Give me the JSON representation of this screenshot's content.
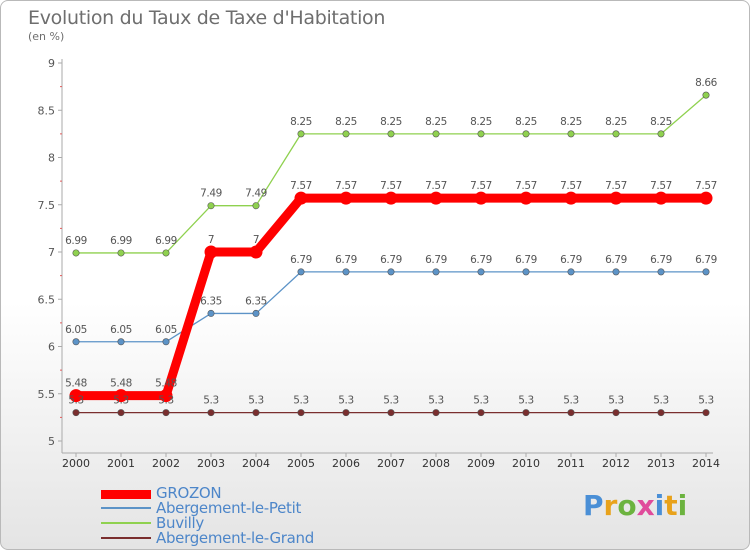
{
  "header": {
    "title": "Evolution du Taux de Taxe d'Habitation",
    "subtitle": "(en %)"
  },
  "logo": {
    "text": "Proxiti",
    "letter_colors": [
      "#4a8fd6",
      "#e8a21b",
      "#6cb33f",
      "#e04b9b",
      "#4a8fd6",
      "#e8a21b",
      "#6cb33f"
    ]
  },
  "chart_data": {
    "type": "line",
    "title": "Evolution du Taux de Taxe d'Habitation",
    "subtitle": "(en %)",
    "xlabel": "",
    "ylabel": "",
    "x": [
      "2000",
      "2001",
      "2002",
      "2003",
      "2004",
      "2005",
      "2006",
      "2007",
      "2008",
      "2009",
      "2010",
      "2011",
      "2012",
      "2013",
      "2014"
    ],
    "ylim": [
      5,
      9
    ],
    "yticks": [
      "5",
      "5.5",
      "6",
      "6.5",
      "7",
      "7.5",
      "8",
      "8.5",
      "9"
    ],
    "grid": false,
    "legend_position": "bottom-left",
    "series": [
      {
        "name": "GROZON",
        "color": "#ff0000",
        "values": [
          5.48,
          5.48,
          5.48,
          7,
          7,
          7.57,
          7.57,
          7.57,
          7.57,
          7.57,
          7.57,
          7.57,
          7.57,
          7.57,
          7.57
        ],
        "labels": [
          "5.48",
          "5.48",
          "5.48",
          "7",
          "7",
          "7.57",
          "7.57",
          "7.57",
          "7.57",
          "7.57",
          "7.57",
          "7.57",
          "7.57",
          "7.57",
          "7.57"
        ]
      },
      {
        "name": "Abergement-le-Petit",
        "color": "#5c93c7",
        "values": [
          6.05,
          6.05,
          6.05,
          6.35,
          6.35,
          6.79,
          6.79,
          6.79,
          6.79,
          6.79,
          6.79,
          6.79,
          6.79,
          6.79,
          6.79
        ],
        "labels": [
          "6.05",
          "6.05",
          "6.05",
          "6.35",
          "6.35",
          "6.79",
          "6.79",
          "6.79",
          "6.79",
          "6.79",
          "6.79",
          "6.79",
          "6.79",
          "6.79",
          "6.79"
        ]
      },
      {
        "name": "Buvilly",
        "color": "#8fd14f",
        "values": [
          6.99,
          6.99,
          6.99,
          7.49,
          7.49,
          8.25,
          8.25,
          8.25,
          8.25,
          8.25,
          8.25,
          8.25,
          8.25,
          8.25,
          8.66
        ],
        "labels": [
          "6.99",
          "6.99",
          "6.99",
          "7.49",
          "7.49",
          "8.25",
          "8.25",
          "8.25",
          "8.25",
          "8.25",
          "8.25",
          "8.25",
          "8.25",
          "8.25",
          "8.66"
        ]
      },
      {
        "name": "Abergement-le-Grand",
        "color": "#7a2e2e",
        "values": [
          5.3,
          5.3,
          5.3,
          5.3,
          5.3,
          5.3,
          5.3,
          5.3,
          5.3,
          5.3,
          5.3,
          5.3,
          5.3,
          5.3,
          5.3
        ],
        "labels": [
          "5.3",
          "5.3",
          "5.3",
          "5.3",
          "5.3",
          "5.3",
          "5.3",
          "5.3",
          "5.3",
          "5.3",
          "5.3",
          "5.3",
          "5.3",
          "5.3",
          "5.3"
        ]
      }
    ]
  }
}
